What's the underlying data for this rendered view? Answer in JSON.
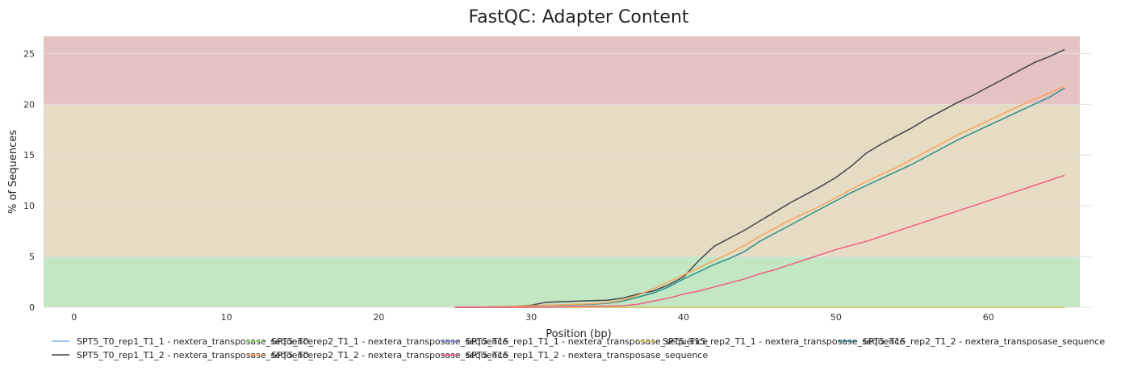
{
  "chart_data": {
    "type": "line",
    "title": "FastQC: Adapter Content",
    "xlabel": "Position (bp)",
    "ylabel": "% of Sequences",
    "xlim": [
      -2,
      66
    ],
    "ylim": [
      0,
      26.7
    ],
    "xticks": [
      0,
      10,
      20,
      30,
      40,
      50,
      60
    ],
    "yticks": [
      0,
      5,
      10,
      15,
      20,
      25
    ],
    "grid": true,
    "legend_position": "bottom",
    "bands": [
      {
        "from": 0,
        "to": 5,
        "color": "#c3e6c3"
      },
      {
        "from": 5,
        "to": 20,
        "color": "#e6dcc3"
      },
      {
        "from": 20,
        "to": 26.7,
        "color": "#e6c3c3"
      }
    ],
    "x": [
      25,
      26,
      27,
      28,
      29,
      30,
      31,
      32,
      33,
      34,
      35,
      36,
      37,
      38,
      39,
      40,
      41,
      42,
      43,
      44,
      45,
      46,
      47,
      48,
      49,
      50,
      51,
      52,
      53,
      54,
      55,
      56,
      57,
      58,
      59,
      60,
      61,
      62,
      63,
      64,
      65
    ],
    "series": [
      {
        "name": "SPT5_T0_rep1_T1_1 - nextera_transposase_sequence",
        "color": "#7cb5ec",
        "values": [
          0,
          0,
          0,
          0,
          0,
          0,
          0,
          0,
          0,
          0,
          0,
          0,
          0,
          0,
          0,
          0,
          0,
          0,
          0,
          0,
          0,
          0,
          0,
          0,
          0,
          0,
          0,
          0,
          0,
          0,
          0,
          0,
          0,
          0,
          0,
          0,
          0,
          0,
          0,
          0,
          0
        ]
      },
      {
        "name": "SPT5_T0_rep2_T1_1 - nextera_transposase_sequence",
        "color": "#90ed7d",
        "values": [
          0,
          0,
          0,
          0,
          0,
          0,
          0,
          0,
          0,
          0,
          0,
          0,
          0,
          0,
          0,
          0,
          0,
          0,
          0,
          0,
          0,
          0,
          0,
          0,
          0,
          0,
          0,
          0,
          0,
          0,
          0,
          0,
          0,
          0,
          0,
          0,
          0,
          0,
          0,
          0,
          0
        ]
      },
      {
        "name": "SPT5_T15_rep1_T1_1 - nextera_transposase_sequence",
        "color": "#8085e9",
        "values": [
          0,
          0,
          0,
          0,
          0,
          0,
          0,
          0,
          0,
          0,
          0,
          0,
          0,
          0,
          0,
          0,
          0,
          0,
          0,
          0,
          0,
          0,
          0,
          0,
          0,
          0,
          0,
          0,
          0,
          0,
          0,
          0,
          0,
          0,
          0,
          0,
          0,
          0,
          0,
          0,
          0
        ]
      },
      {
        "name": "SPT5_T15_rep2_T1_1 - nextera_transposase_sequence",
        "color": "#e4d354",
        "values": [
          0,
          0,
          0,
          0,
          0,
          0,
          0,
          0,
          0,
          0,
          0,
          0,
          0,
          0,
          0,
          0,
          0,
          0,
          0,
          0,
          0,
          0,
          0,
          0,
          0,
          0,
          0,
          0,
          0,
          0,
          0,
          0,
          0,
          0,
          0,
          0,
          0,
          0,
          0,
          0,
          0
        ]
      },
      {
        "name": "SPT5_T15_rep2_T1_2 - nextera_transposase_sequence",
        "color": "#2b908f",
        "values": [
          0,
          0,
          0.02,
          0.05,
          0.1,
          0.15,
          0.2,
          0.22,
          0.25,
          0.3,
          0.4,
          0.6,
          1.0,
          1.4,
          2.0,
          2.8,
          3.5,
          4.2,
          4.8,
          5.5,
          6.5,
          7.3,
          8.1,
          8.9,
          9.7,
          10.5,
          11.3,
          12.0,
          12.7,
          13.4,
          14.1,
          14.9,
          15.7,
          16.5,
          17.2,
          17.9,
          18.6,
          19.3,
          20.0,
          20.7,
          21.6
        ]
      },
      {
        "name": "SPT5_T0_rep1_T1_2 - nextera_transposase_sequence",
        "color": "#434348",
        "values": [
          0,
          0,
          0.02,
          0.05,
          0.1,
          0.2,
          0.5,
          0.55,
          0.6,
          0.65,
          0.7,
          0.9,
          1.3,
          1.6,
          2.2,
          3.0,
          4.6,
          6.0,
          6.8,
          7.6,
          8.5,
          9.4,
          10.3,
          11.1,
          11.9,
          12.8,
          13.9,
          15.2,
          16.1,
          16.9,
          17.7,
          18.6,
          19.4,
          20.2,
          20.9,
          21.7,
          22.5,
          23.3,
          24.1,
          24.7,
          25.4
        ]
      },
      {
        "name": "SPT5_T0_rep2_T1_2 - nextera_transposase_sequence",
        "color": "#f7a35c",
        "values": [
          0,
          0,
          0.02,
          0.05,
          0.1,
          0.15,
          0.2,
          0.25,
          0.3,
          0.35,
          0.45,
          0.7,
          1.2,
          1.8,
          2.5,
          3.2,
          3.9,
          4.6,
          5.3,
          6.1,
          7.0,
          7.8,
          8.6,
          9.3,
          10.0,
          10.8,
          11.6,
          12.4,
          13.1,
          13.8,
          14.6,
          15.4,
          16.2,
          17.0,
          17.7,
          18.4,
          19.1,
          19.8,
          20.5,
          21.1,
          21.8
        ]
      },
      {
        "name": "SPT5_T15_rep1_T1_2 - nextera_transposase_sequence",
        "color": "#f15c80",
        "values": [
          0,
          0,
          0,
          0,
          0,
          0.02,
          0.03,
          0.05,
          0.07,
          0.1,
          0.12,
          0.15,
          0.3,
          0.6,
          0.9,
          1.3,
          1.6,
          2.0,
          2.4,
          2.8,
          3.3,
          3.7,
          4.2,
          4.7,
          5.2,
          5.7,
          6.1,
          6.5,
          7.0,
          7.5,
          8.0,
          8.5,
          9.0,
          9.5,
          10.0,
          10.5,
          11.0,
          11.5,
          12.0,
          12.5,
          13.0
        ]
      }
    ]
  }
}
